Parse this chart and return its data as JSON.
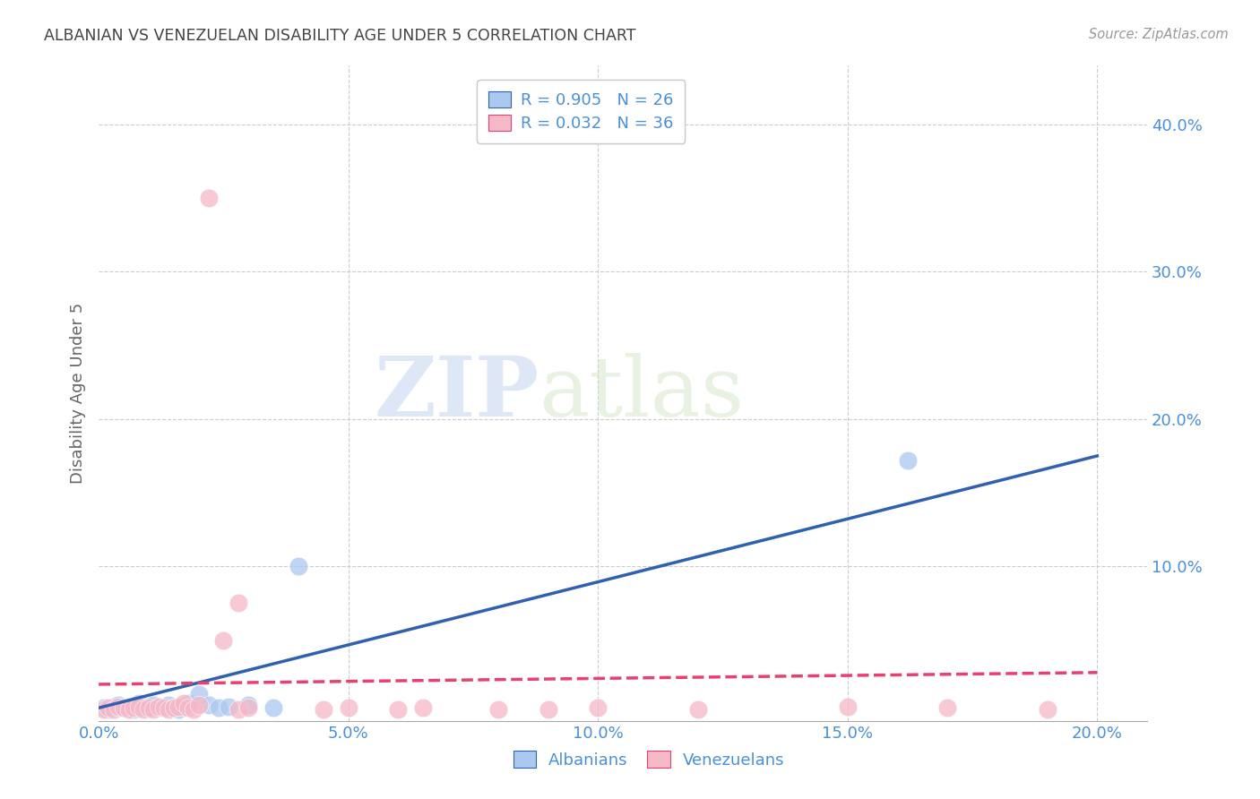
{
  "title": "ALBANIAN VS VENEZUELAN DISABILITY AGE UNDER 5 CORRELATION CHART",
  "source": "Source: ZipAtlas.com",
  "ylabel": "Disability Age Under 5",
  "xlim": [
    0.0,
    0.21
  ],
  "ylim": [
    -0.005,
    0.44
  ],
  "xticks": [
    0.0,
    0.05,
    0.1,
    0.15,
    0.2
  ],
  "yticks": [
    0.0,
    0.1,
    0.2,
    0.3,
    0.4
  ],
  "xtick_labels": [
    "0.0%",
    "5.0%",
    "10.0%",
    "15.0%",
    "20.0%"
  ],
  "ytick_labels": [
    "",
    "10.0%",
    "20.0%",
    "30.0%",
    "40.0%"
  ],
  "background_color": "#ffffff",
  "grid_color": "#cccccc",
  "albanians_color": "#aac8f0",
  "venezuelans_color": "#f5b8c8",
  "trendline_albanian_color": "#3060b0",
  "trendline_venezuelan_color": "#e84070",
  "legend_text_color": "#4a90d9",
  "title_color": "#444444",
  "watermark_zip": "ZIP",
  "watermark_atlas": "atlas",
  "albanians_x": [
    0.001,
    0.002,
    0.003,
    0.004,
    0.005,
    0.006,
    0.007,
    0.008,
    0.009,
    0.01,
    0.011,
    0.012,
    0.013,
    0.014,
    0.015,
    0.016,
    0.017,
    0.018,
    0.02,
    0.022,
    0.024,
    0.026,
    0.03,
    0.035,
    0.04,
    0.162
  ],
  "albanians_y": [
    0.004,
    0.003,
    0.005,
    0.006,
    0.004,
    0.005,
    0.003,
    0.007,
    0.004,
    0.005,
    0.006,
    0.004,
    0.005,
    0.006,
    0.004,
    0.003,
    0.005,
    0.007,
    0.013,
    0.006,
    0.004,
    0.005,
    0.006,
    0.004,
    0.1,
    0.172
  ],
  "venezuelans_x": [
    0.001,
    0.002,
    0.003,
    0.004,
    0.005,
    0.006,
    0.007,
    0.008,
    0.009,
    0.01,
    0.011,
    0.012,
    0.013,
    0.014,
    0.015,
    0.016,
    0.017,
    0.018,
    0.019,
    0.02,
    0.022,
    0.025,
    0.028,
    0.03,
    0.028,
    0.045,
    0.05,
    0.06,
    0.065,
    0.08,
    0.09,
    0.1,
    0.12,
    0.15,
    0.17,
    0.19
  ],
  "venezuelans_y": [
    0.003,
    0.004,
    0.003,
    0.005,
    0.004,
    0.003,
    0.004,
    0.005,
    0.003,
    0.004,
    0.003,
    0.005,
    0.004,
    0.003,
    0.004,
    0.005,
    0.007,
    0.004,
    0.003,
    0.006,
    0.35,
    0.05,
    0.003,
    0.004,
    0.075,
    0.003,
    0.004,
    0.003,
    0.004,
    0.003,
    0.003,
    0.004,
    0.003,
    0.005,
    0.004,
    0.003
  ],
  "albanian_R": "0.905",
  "albanian_N": "26",
  "venezuelan_R": "0.032",
  "venezuelan_N": "36",
  "legend_albanians": "Albanians",
  "legend_venezuelans": "Venezuelans",
  "trendline_alb_x0": 0.0,
  "trendline_alb_y0": 0.004,
  "trendline_alb_x1": 0.2,
  "trendline_alb_y1": 0.175,
  "trendline_ven_x0": 0.0,
  "trendline_ven_y0": 0.02,
  "trendline_ven_x1": 0.2,
  "trendline_ven_y1": 0.028
}
